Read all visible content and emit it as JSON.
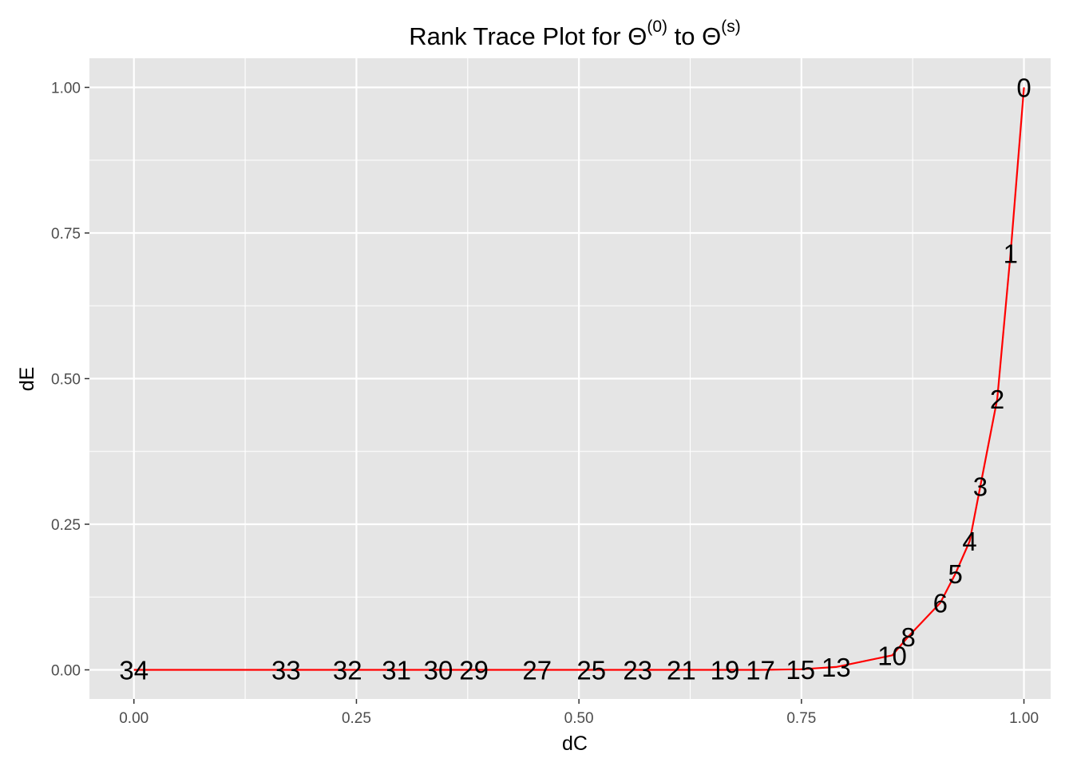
{
  "title": {
    "prefix": "Rank Trace Plot for ",
    "symbol": "Θ",
    "sup_start": "(0)",
    "connector": " to ",
    "sup_end": "(s)"
  },
  "chart_data": {
    "type": "line",
    "xlabel": "dC",
    "ylabel": "dE",
    "xlim": [
      -0.05,
      1.03
    ],
    "ylim": [
      -0.05,
      1.05
    ],
    "x_ticks": [
      0,
      0.25,
      0.5,
      0.75,
      1.0
    ],
    "x_tick_labels": [
      "0.00",
      "0.25",
      "0.50",
      "0.75",
      "1.00"
    ],
    "y_ticks": [
      0,
      0.25,
      0.5,
      0.75,
      1.0
    ],
    "y_tick_labels": [
      "0.00",
      "0.25",
      "0.50",
      "0.75",
      "1.00"
    ],
    "grid": true,
    "line_color": "#ff0000",
    "panel_color": "#e5e5e5",
    "points": [
      {
        "label": "0",
        "x": 1.0,
        "y": 1.0
      },
      {
        "label": "1",
        "x": 0.985,
        "y": 0.715
      },
      {
        "label": "2",
        "x": 0.97,
        "y": 0.465
      },
      {
        "label": "3",
        "x": 0.951,
        "y": 0.315
      },
      {
        "label": "4",
        "x": 0.939,
        "y": 0.221
      },
      {
        "label": "5",
        "x": 0.923,
        "y": 0.165
      },
      {
        "label": "6",
        "x": 0.906,
        "y": 0.115
      },
      {
        "label": "8",
        "x": 0.87,
        "y": 0.057
      },
      {
        "label": "10",
        "x": 0.852,
        "y": 0.025
      },
      {
        "label": "13",
        "x": 0.789,
        "y": 0.005
      },
      {
        "label": "15",
        "x": 0.749,
        "y": 0.001
      },
      {
        "label": "17",
        "x": 0.704,
        "y": 0.0
      },
      {
        "label": "19",
        "x": 0.664,
        "y": 0.0
      },
      {
        "label": "21",
        "x": 0.615,
        "y": 0.0
      },
      {
        "label": "23",
        "x": 0.566,
        "y": 0.0
      },
      {
        "label": "25",
        "x": 0.514,
        "y": 0.0
      },
      {
        "label": "27",
        "x": 0.453,
        "y": 0.0
      },
      {
        "label": "29",
        "x": 0.382,
        "y": 0.0
      },
      {
        "label": "30",
        "x": 0.342,
        "y": 0.0
      },
      {
        "label": "31",
        "x": 0.295,
        "y": 0.0
      },
      {
        "label": "32",
        "x": 0.24,
        "y": 0.0
      },
      {
        "label": "33",
        "x": 0.171,
        "y": 0.0
      },
      {
        "label": "34",
        "x": 0.0,
        "y": 0.0
      }
    ]
  }
}
